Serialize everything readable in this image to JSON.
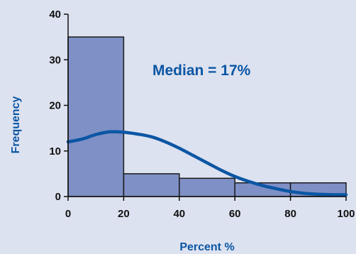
{
  "colors": {
    "background": "#dde2f0",
    "bar_fill": "#7f90c6",
    "bar_stroke": "#1a1a1a",
    "curve": "#0b56a4",
    "axis": "#111111",
    "label_accent": "#0b56a4"
  },
  "chart_data": {
    "type": "bar",
    "bin_edges": [
      0,
      20,
      40,
      60,
      80,
      100
    ],
    "values": [
      35,
      5,
      4,
      3,
      3
    ],
    "curve": {
      "x": [
        0,
        5,
        10,
        15,
        20,
        25,
        30,
        35,
        40,
        45,
        50,
        55,
        60,
        65,
        70,
        75,
        80,
        85,
        90,
        95,
        100
      ],
      "y": [
        12.0,
        12.6,
        13.6,
        14.2,
        14.1,
        13.7,
        13.1,
        12.0,
        10.6,
        9.0,
        7.4,
        5.8,
        4.4,
        3.3,
        2.4,
        1.7,
        1.1,
        0.7,
        0.5,
        0.4,
        0.4
      ]
    },
    "xlabel": "Percent %",
    "ylabel": "Frequency",
    "xlim": [
      0,
      100
    ],
    "ylim": [
      0,
      40
    ],
    "xticks": [
      "0",
      "20",
      "40",
      "60",
      "80",
      "100"
    ],
    "yticks": [
      "0",
      "10",
      "20",
      "30",
      "40"
    ],
    "annotation": "Median = 17%",
    "grid": false,
    "legend": false
  }
}
